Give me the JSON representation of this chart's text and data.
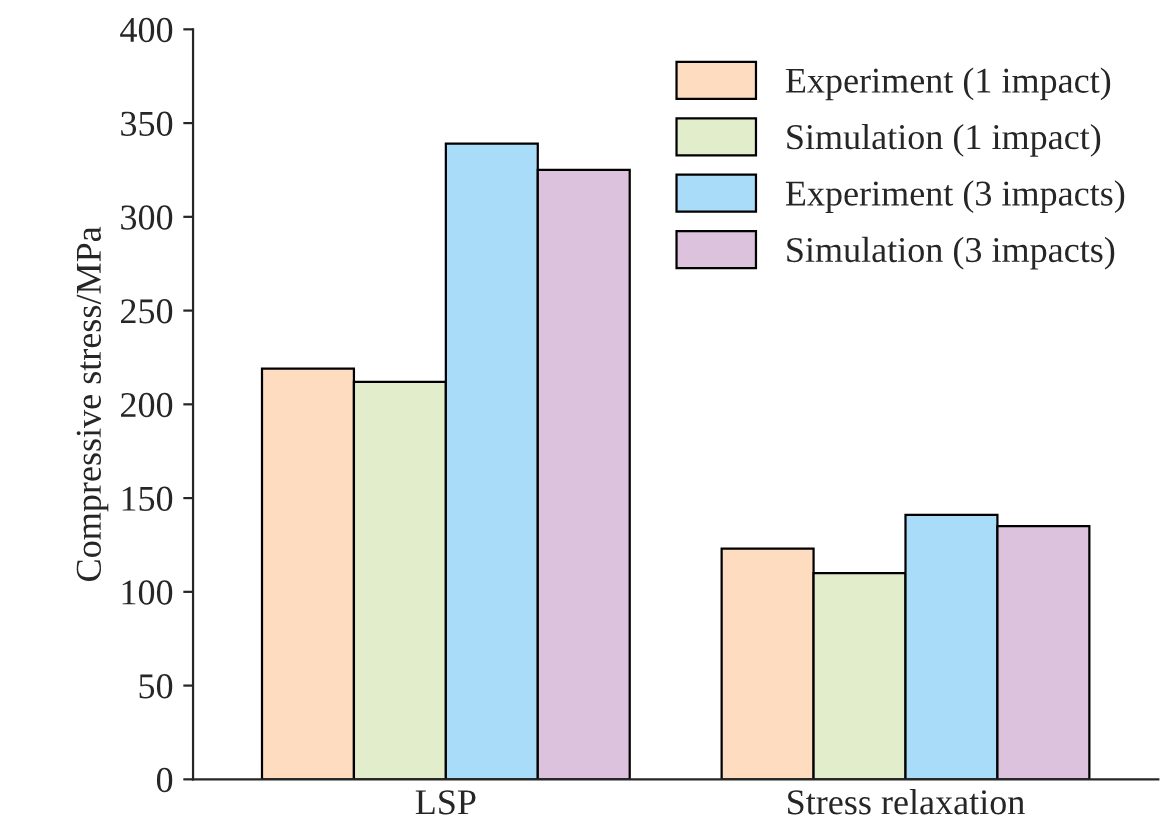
{
  "chart_data": {
    "type": "bar",
    "ylabel": "Compressive stress/MPa",
    "categories": [
      "LSP",
      "Stress relaxation"
    ],
    "series": [
      {
        "name": "Experiment (1 impact)",
        "color": "#fddcc0",
        "values": [
          219,
          123
        ]
      },
      {
        "name": "Simulation (1 impact)",
        "color": "#e2edcc",
        "values": [
          212,
          110
        ]
      },
      {
        "name": "Experiment (3 impacts)",
        "color": "#a9dcf8",
        "values": [
          339,
          141
        ]
      },
      {
        "name": "Simulation (3 impacts)",
        "color": "#dcc2dd",
        "values": [
          325,
          135
        ]
      }
    ],
    "ylim": [
      0,
      400
    ],
    "yticks": [
      0,
      50,
      100,
      150,
      200,
      250,
      300,
      350,
      400
    ],
    "grid": false,
    "legend": "top right"
  }
}
